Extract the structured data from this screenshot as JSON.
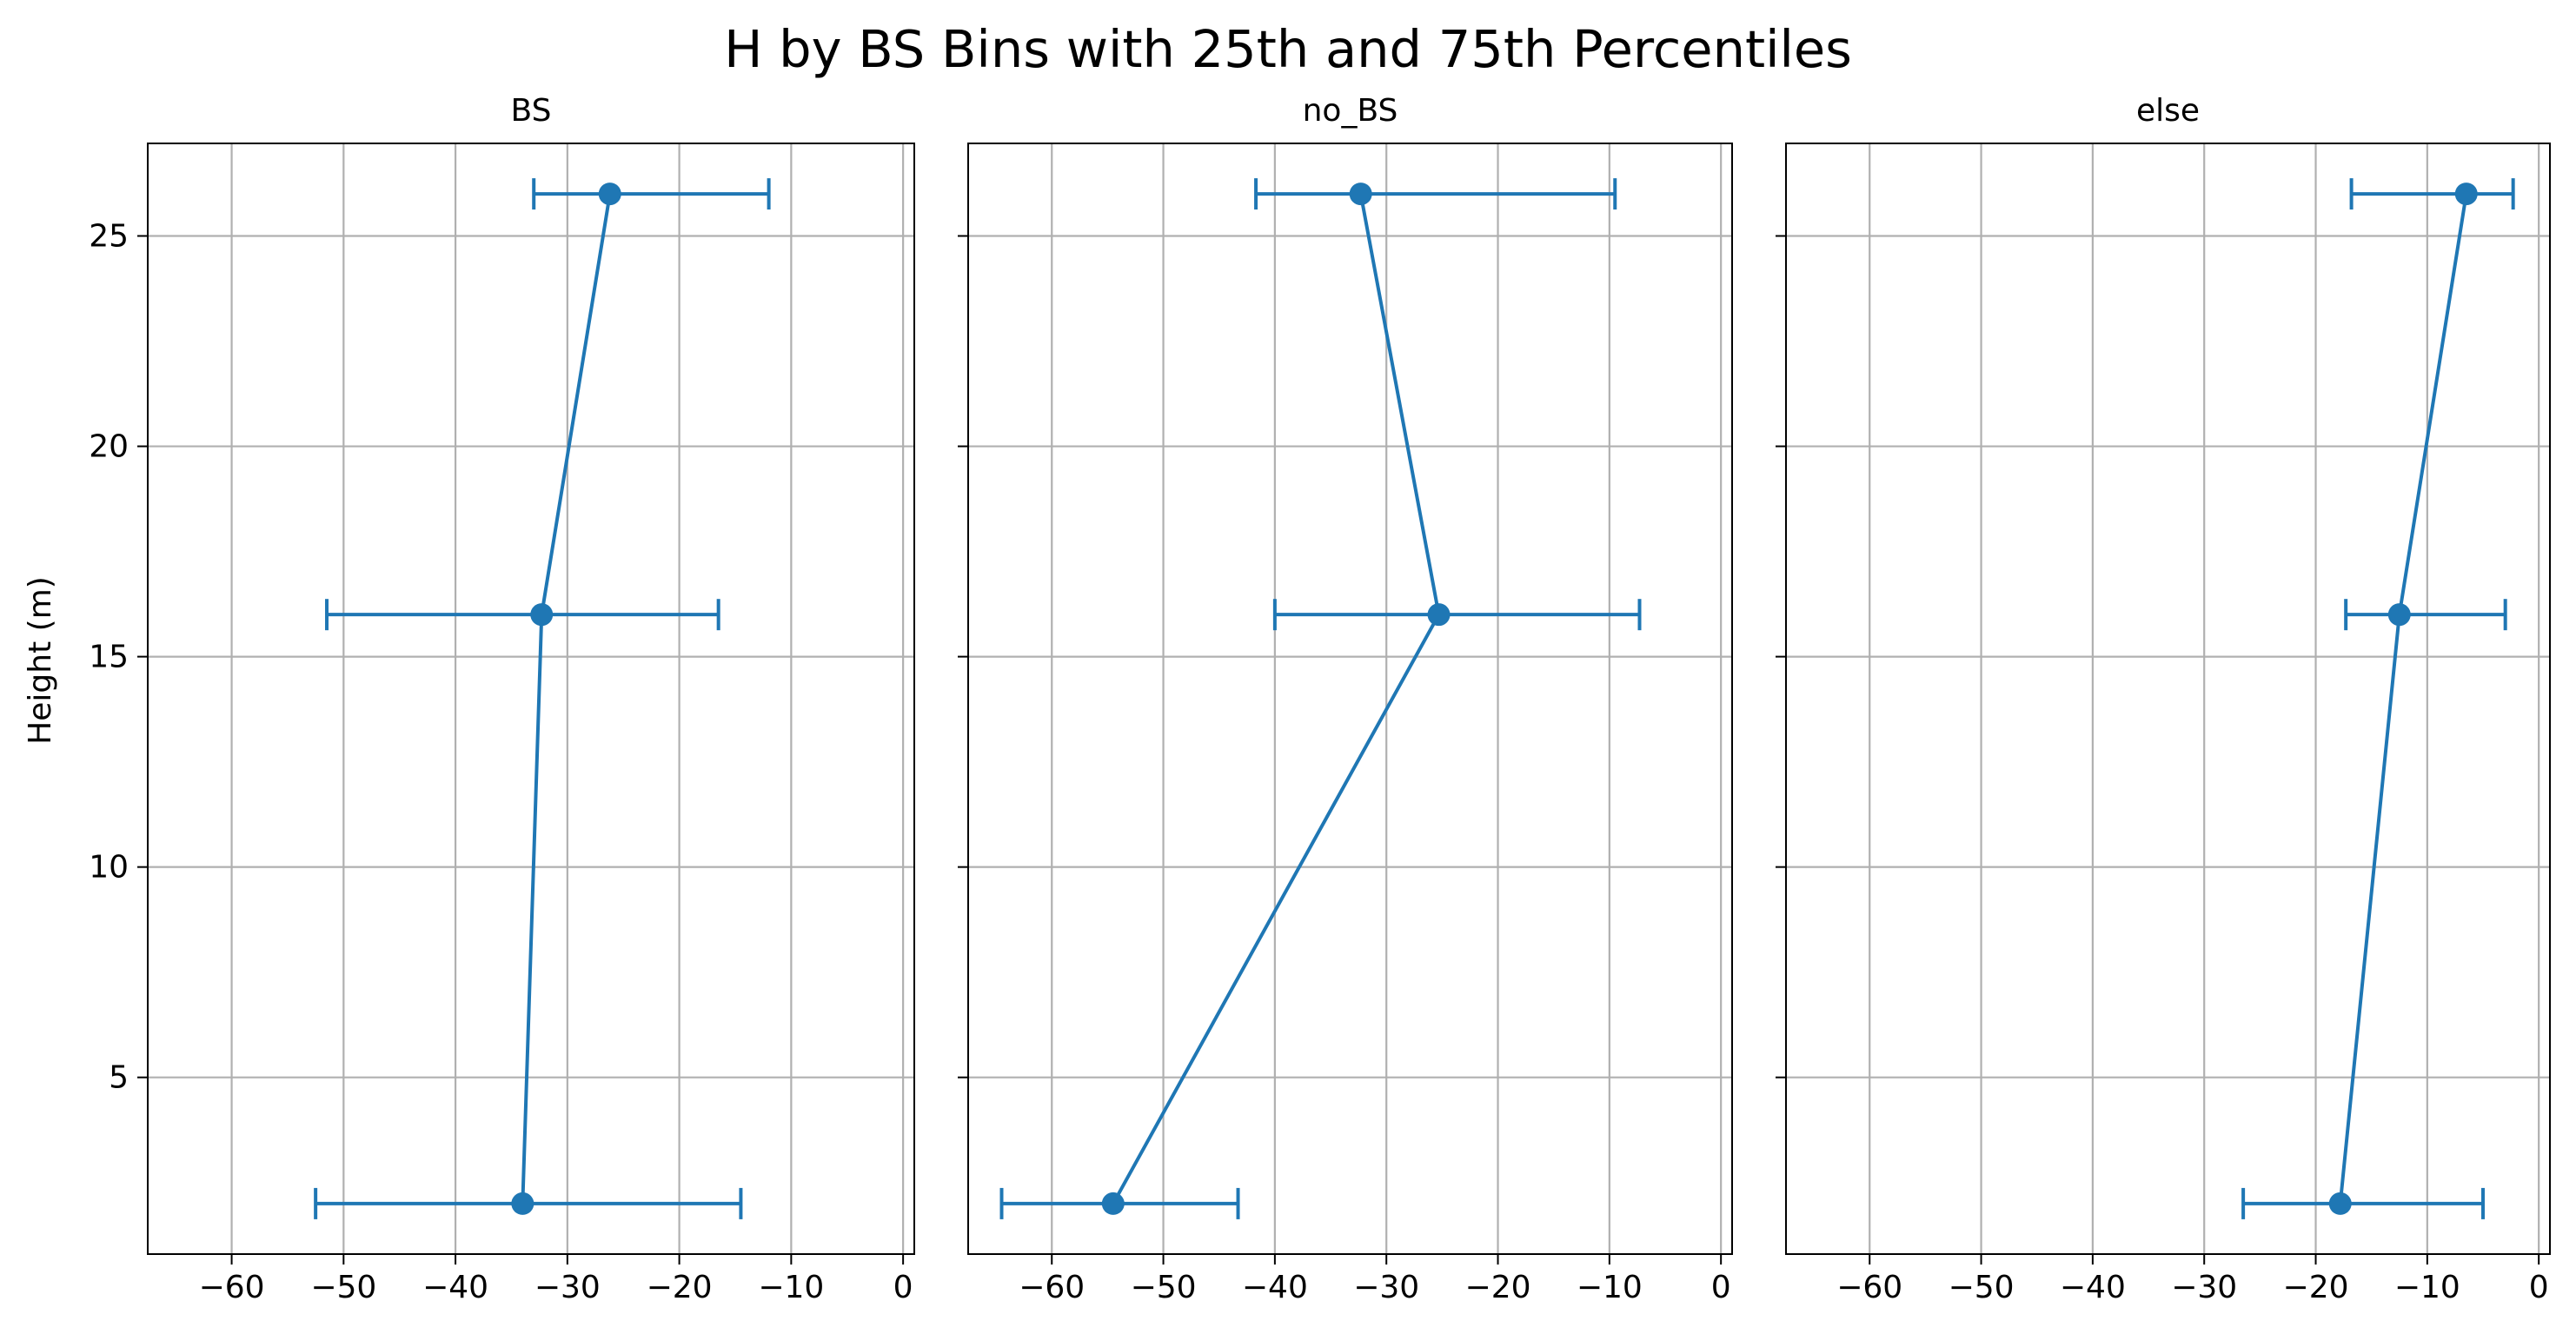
{
  "chart_data": {
    "type": "line",
    "title": "H by BS Bins with 25th and 75th Percentiles",
    "ylabel": "Height (m)",
    "xlabel": "",
    "xlim": [
      -67.5,
      1
    ],
    "ylim": [
      0.8,
      27.2
    ],
    "xticks": [
      -60,
      -50,
      -40,
      -30,
      -20,
      -10,
      0
    ],
    "yticks": [
      5,
      10,
      15,
      20,
      25
    ],
    "grid": true,
    "sharey": true,
    "color": "#1f77b4",
    "panels": [
      {
        "title": "BS",
        "points": [
          {
            "y": 2,
            "x": -34.0,
            "p25": -52.5,
            "p75": -14.5
          },
          {
            "y": 16,
            "x": -32.3,
            "p25": -51.5,
            "p75": -16.5
          },
          {
            "y": 26,
            "x": -26.2,
            "p25": -33.0,
            "p75": -12.0
          }
        ]
      },
      {
        "title": "no_BS",
        "points": [
          {
            "y": 2,
            "x": -54.5,
            "p25": -64.5,
            "p75": -43.3
          },
          {
            "y": 16,
            "x": -25.3,
            "p25": -40.0,
            "p75": -7.3
          },
          {
            "y": 26,
            "x": -32.3,
            "p25": -41.7,
            "p75": -9.5
          }
        ]
      },
      {
        "title": "else",
        "points": [
          {
            "y": 2,
            "x": -17.8,
            "p25": -26.5,
            "p75": -5.0
          },
          {
            "y": 16,
            "x": -12.5,
            "p25": -17.3,
            "p75": -3.0
          },
          {
            "y": 26,
            "x": -6.5,
            "p25": -16.8,
            "p75": -2.3
          }
        ]
      }
    ]
  }
}
